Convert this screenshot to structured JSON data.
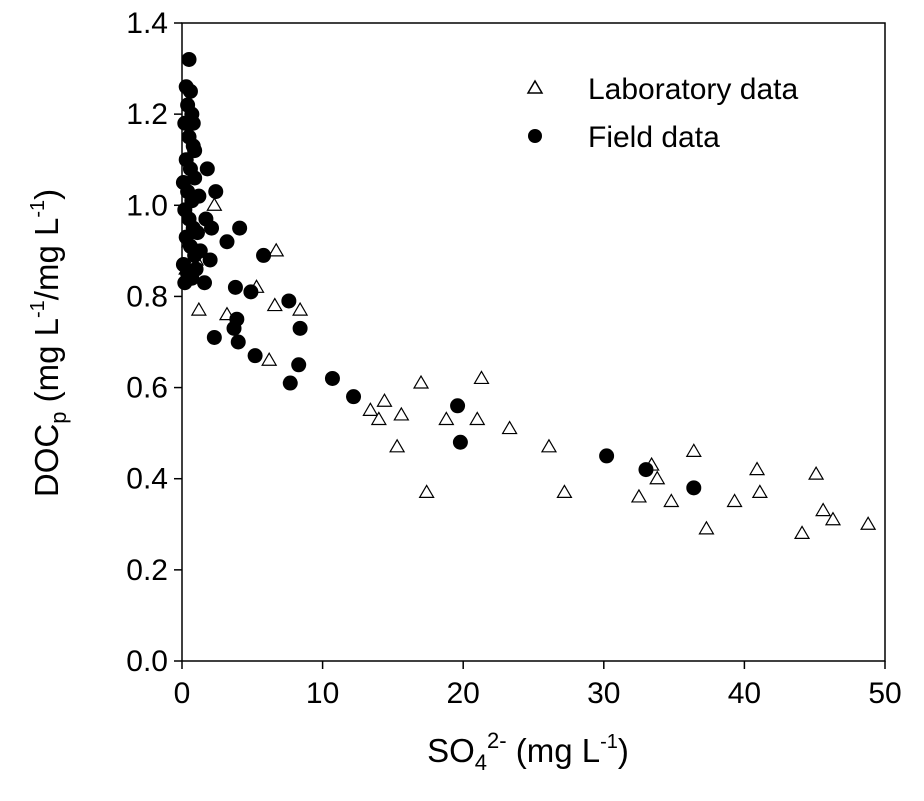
{
  "chart_data": {
    "type": "scatter",
    "xlabel": {
      "base": "SO",
      "sub": "4",
      "sup": "2-",
      "rest": " (mg L",
      "unit_sup": "-1",
      "close": ")"
    },
    "ylabel": {
      "base": "DOC",
      "sub": "p",
      "p1": " (mg L",
      "sup1": "-1",
      "p2": "/mg L",
      "sup2": "-1",
      "close": ")"
    },
    "xlim": [
      0,
      50
    ],
    "ylim": [
      0,
      1.4
    ],
    "x_ticks": [
      "0",
      "10",
      "20",
      "30",
      "40",
      "50"
    ],
    "y_ticks": [
      "0.0",
      "0.2",
      "0.4",
      "0.6",
      "0.8",
      "1.0",
      "1.2",
      "1.4"
    ],
    "grid": false,
    "legend_position": "top-right",
    "series": [
      {
        "name": "Laboratory data",
        "marker": "open-triangle",
        "color": "#000000",
        "points": [
          [
            0.3,
            0.86
          ],
          [
            0.5,
            0.92
          ],
          [
            0.8,
            0.95
          ],
          [
            1.0,
            0.88
          ],
          [
            1.2,
            0.77
          ],
          [
            2.3,
            1.0
          ],
          [
            3.2,
            0.76
          ],
          [
            5.3,
            0.82
          ],
          [
            6.2,
            0.66
          ],
          [
            6.6,
            0.78
          ],
          [
            6.7,
            0.9
          ],
          [
            8.4,
            0.77
          ],
          [
            13.4,
            0.55
          ],
          [
            14.0,
            0.53
          ],
          [
            14.4,
            0.57
          ],
          [
            15.3,
            0.47
          ],
          [
            15.6,
            0.54
          ],
          [
            17.0,
            0.61
          ],
          [
            17.4,
            0.37
          ],
          [
            18.8,
            0.53
          ],
          [
            21.0,
            0.53
          ],
          [
            21.3,
            0.62
          ],
          [
            23.3,
            0.51
          ],
          [
            26.1,
            0.47
          ],
          [
            27.2,
            0.37
          ],
          [
            32.5,
            0.36
          ],
          [
            33.4,
            0.43
          ],
          [
            33.8,
            0.4
          ],
          [
            34.8,
            0.35
          ],
          [
            36.4,
            0.46
          ],
          [
            37.3,
            0.29
          ],
          [
            39.3,
            0.35
          ],
          [
            40.9,
            0.42
          ],
          [
            41.1,
            0.37
          ],
          [
            44.1,
            0.28
          ],
          [
            45.1,
            0.41
          ],
          [
            45.6,
            0.33
          ],
          [
            46.3,
            0.31
          ],
          [
            48.8,
            0.3
          ]
        ]
      },
      {
        "name": "Field data",
        "marker": "filled-circle",
        "color": "#000000",
        "points": [
          [
            0.5,
            1.32
          ],
          [
            0.3,
            1.26
          ],
          [
            0.6,
            1.25
          ],
          [
            0.4,
            1.22
          ],
          [
            0.7,
            1.2
          ],
          [
            0.2,
            1.18
          ],
          [
            0.5,
            1.15
          ],
          [
            0.8,
            1.13
          ],
          [
            0.3,
            1.1
          ],
          [
            0.6,
            1.08
          ],
          [
            0.9,
            1.06
          ],
          [
            0.1,
            1.05
          ],
          [
            0.4,
            1.03
          ],
          [
            0.7,
            1.01
          ],
          [
            0.2,
            0.99
          ],
          [
            0.5,
            0.97
          ],
          [
            0.8,
            0.95
          ],
          [
            0.3,
            0.93
          ],
          [
            0.6,
            0.91
          ],
          [
            0.9,
            0.89
          ],
          [
            0.1,
            0.87
          ],
          [
            0.4,
            0.85
          ],
          [
            0.7,
            0.84
          ],
          [
            0.2,
            0.83
          ],
          [
            1.0,
            0.86
          ],
          [
            1.1,
            0.94
          ],
          [
            1.2,
            1.02
          ],
          [
            0.9,
            1.12
          ],
          [
            0.8,
            1.18
          ],
          [
            1.3,
            0.9
          ],
          [
            1.8,
            1.08
          ],
          [
            1.7,
            0.97
          ],
          [
            2.1,
            0.95
          ],
          [
            2.4,
            1.03
          ],
          [
            2.0,
            0.88
          ],
          [
            1.6,
            0.83
          ],
          [
            2.3,
            0.71
          ],
          [
            3.2,
            0.92
          ],
          [
            3.8,
            0.82
          ],
          [
            4.1,
            0.95
          ],
          [
            3.9,
            0.75
          ],
          [
            3.7,
            0.73
          ],
          [
            4.0,
            0.7
          ],
          [
            4.9,
            0.81
          ],
          [
            5.2,
            0.67
          ],
          [
            5.8,
            0.89
          ],
          [
            7.6,
            0.79
          ],
          [
            7.7,
            0.61
          ],
          [
            8.3,
            0.65
          ],
          [
            8.4,
            0.73
          ],
          [
            10.7,
            0.62
          ],
          [
            12.2,
            0.58
          ],
          [
            19.6,
            0.56
          ],
          [
            19.8,
            0.48
          ],
          [
            30.2,
            0.45
          ],
          [
            33.0,
            0.42
          ],
          [
            36.4,
            0.38
          ]
        ]
      }
    ]
  }
}
